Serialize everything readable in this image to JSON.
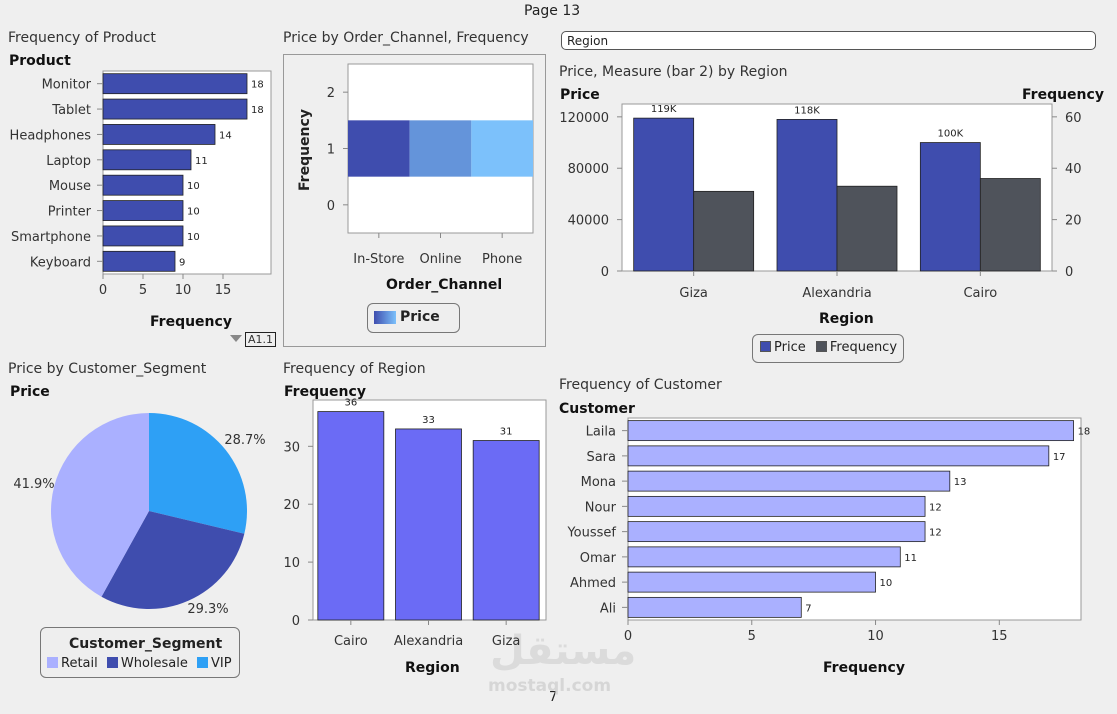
{
  "page": {
    "title": "Page 13",
    "footer": "7",
    "watermark": "مستقل",
    "watermark_sub": "mostaql.com"
  },
  "filter": {
    "label": "Region"
  },
  "colors": {
    "dark_blue": "#3f4dae",
    "gray": "#4f535b",
    "mid_blue": "#6b6bf5",
    "light_blue": "#aab0ff",
    "vip_blue": "#2ea0f5",
    "channel_mid": "#6494da",
    "channel_light": "#7cc1fb"
  },
  "panels": {
    "product": {
      "title": "Frequency of Product",
      "ylabel": "Product",
      "xlabel": "Frequency",
      "badge": "A1.1",
      "filter_icon": "funnel-icon"
    },
    "channel": {
      "title": "Price by Order_Channel, Frequency",
      "ylabel": "Frequency",
      "xlabel": "Order_Channel",
      "legend": "Price"
    },
    "region_bar": {
      "title": "Price, Measure (bar 2) by Region",
      "ylabel_left": "Price",
      "ylabel_right": "Frequency",
      "xlabel": "Region",
      "legend": [
        "Price",
        "Frequency"
      ]
    },
    "segment": {
      "title": "Price by Customer_Segment",
      "ylabel": "Price",
      "legend_title": "Customer_Segment",
      "legend": [
        "Retail",
        "Wholesale",
        "VIP"
      ]
    },
    "freq_region": {
      "title": "Frequency of Region",
      "ylabel": "Frequency",
      "xlabel": "Region"
    },
    "customer": {
      "title": "Frequency of Customer",
      "ylabel": "Customer",
      "xlabel": "Frequency"
    }
  },
  "chart_data": [
    {
      "type": "bar",
      "orientation": "horizontal",
      "title": "Frequency of Product",
      "xlabel": "Frequency",
      "ylabel": "Product",
      "categories": [
        "Monitor",
        "Tablet",
        "Headphones",
        "Laptop",
        "Mouse",
        "Printer",
        "Smartphone",
        "Keyboard"
      ],
      "values": [
        18,
        18,
        14,
        11,
        10,
        10,
        10,
        9
      ],
      "xlim": [
        0,
        21
      ],
      "ticks": [
        0,
        5,
        10,
        15
      ]
    },
    {
      "type": "heatmap",
      "title": "Price by Order_Channel, Frequency",
      "xlabel": "Order_Channel",
      "ylabel": "Frequency",
      "categories": [
        "In-Store",
        "Online",
        "Phone"
      ],
      "y": [
        1,
        1,
        1
      ],
      "ylim": [
        -0.5,
        2.5
      ],
      "ticks": [
        0,
        1,
        2
      ],
      "color_rank": [
        1,
        2,
        3
      ],
      "legend": "Price"
    },
    {
      "type": "bar",
      "title": "Price, Measure (bar 2) by Region",
      "xlabel": "Region",
      "ylabel": "Price",
      "y2label": "Frequency",
      "categories": [
        "Giza",
        "Alexandria",
        "Cairo"
      ],
      "series": [
        {
          "name": "Price",
          "axis": "left",
          "values": [
            119000,
            118000,
            100000
          ],
          "labels": [
            "119K",
            "118K",
            "100K"
          ]
        },
        {
          "name": "Frequency",
          "axis": "right",
          "values": [
            31,
            33,
            36
          ]
        }
      ],
      "ylim": [
        0,
        130000
      ],
      "yticks": [
        0,
        40000,
        80000,
        120000
      ],
      "y2lim": [
        0,
        65
      ],
      "y2ticks": [
        0,
        20,
        40,
        60
      ]
    },
    {
      "type": "pie",
      "title": "Price by Customer_Segment",
      "ylabel": "Price",
      "categories": [
        "Retail",
        "Wholesale",
        "VIP"
      ],
      "values": [
        41.9,
        29.3,
        28.7
      ],
      "labels": [
        "41.9%",
        "29.3%",
        "28.7%"
      ],
      "legend_title": "Customer_Segment"
    },
    {
      "type": "bar",
      "title": "Frequency of Region",
      "xlabel": "Region",
      "ylabel": "Frequency",
      "categories": [
        "Cairo",
        "Alexandria",
        "Giza"
      ],
      "values": [
        36,
        33,
        31
      ],
      "ylim": [
        0,
        38
      ],
      "ticks": [
        0,
        10,
        20,
        30
      ]
    },
    {
      "type": "bar",
      "orientation": "horizontal",
      "title": "Frequency of Customer",
      "xlabel": "Frequency",
      "ylabel": "Customer",
      "categories": [
        "Laila",
        "Sara",
        "Mona",
        "Nour",
        "Youssef",
        "Omar",
        "Ahmed",
        "Ali"
      ],
      "values": [
        18,
        17,
        13,
        12,
        12,
        11,
        10,
        7
      ],
      "xlim": [
        0,
        18.3
      ],
      "ticks": [
        0,
        5,
        10,
        15
      ]
    }
  ]
}
